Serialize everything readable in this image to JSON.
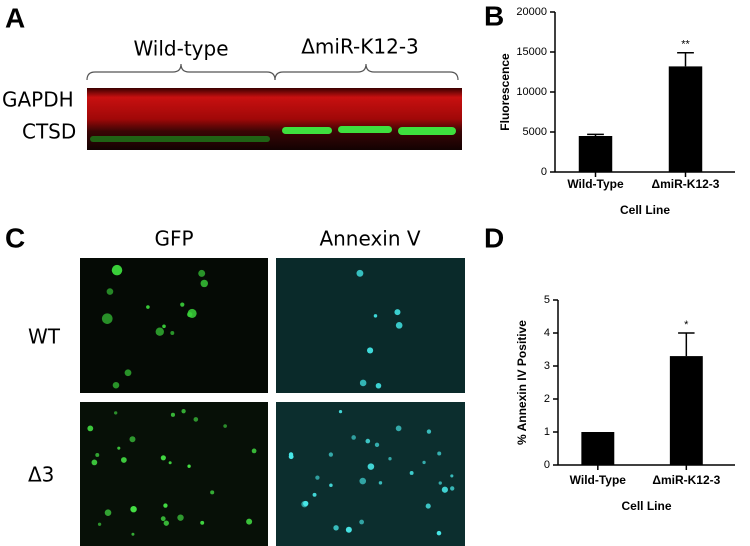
{
  "panel_labels": [
    "A",
    "B",
    "C",
    "D"
  ],
  "blot": {
    "groups": [
      "Wild-type",
      "ΔmiR-K12-3"
    ],
    "bands": [
      "GAPDH",
      "CTSD"
    ]
  },
  "microscopy": {
    "columns": [
      "GFP",
      "Annexin V"
    ],
    "rows": [
      "WT",
      "Δ3"
    ]
  },
  "chart_data": [
    {
      "type": "bar",
      "y_label": "Fluorescence",
      "x_label": "Cell Line",
      "categories": [
        "Wild-Type",
        "ΔmiR-K12-3"
      ],
      "values": [
        4500,
        13200
      ],
      "errors": [
        200,
        1700
      ],
      "significance": [
        null,
        "**"
      ],
      "color": "#000000",
      "ylim": [
        0,
        20000
      ],
      "yticks": [
        0,
        5000,
        10000,
        15000,
        20000
      ]
    },
    {
      "type": "bar",
      "y_label": "% Annexin IV Positive",
      "x_label": "Cell Line",
      "categories": [
        "Wild-Type",
        "ΔmiR-K12-3"
      ],
      "values": [
        1,
        3.3
      ],
      "errors": [
        null,
        0.7
      ],
      "significance": [
        null,
        "*"
      ],
      "color": "#000000",
      "ylim": [
        0,
        5
      ],
      "yticks": [
        0,
        1,
        2,
        3,
        4,
        5
      ]
    }
  ]
}
